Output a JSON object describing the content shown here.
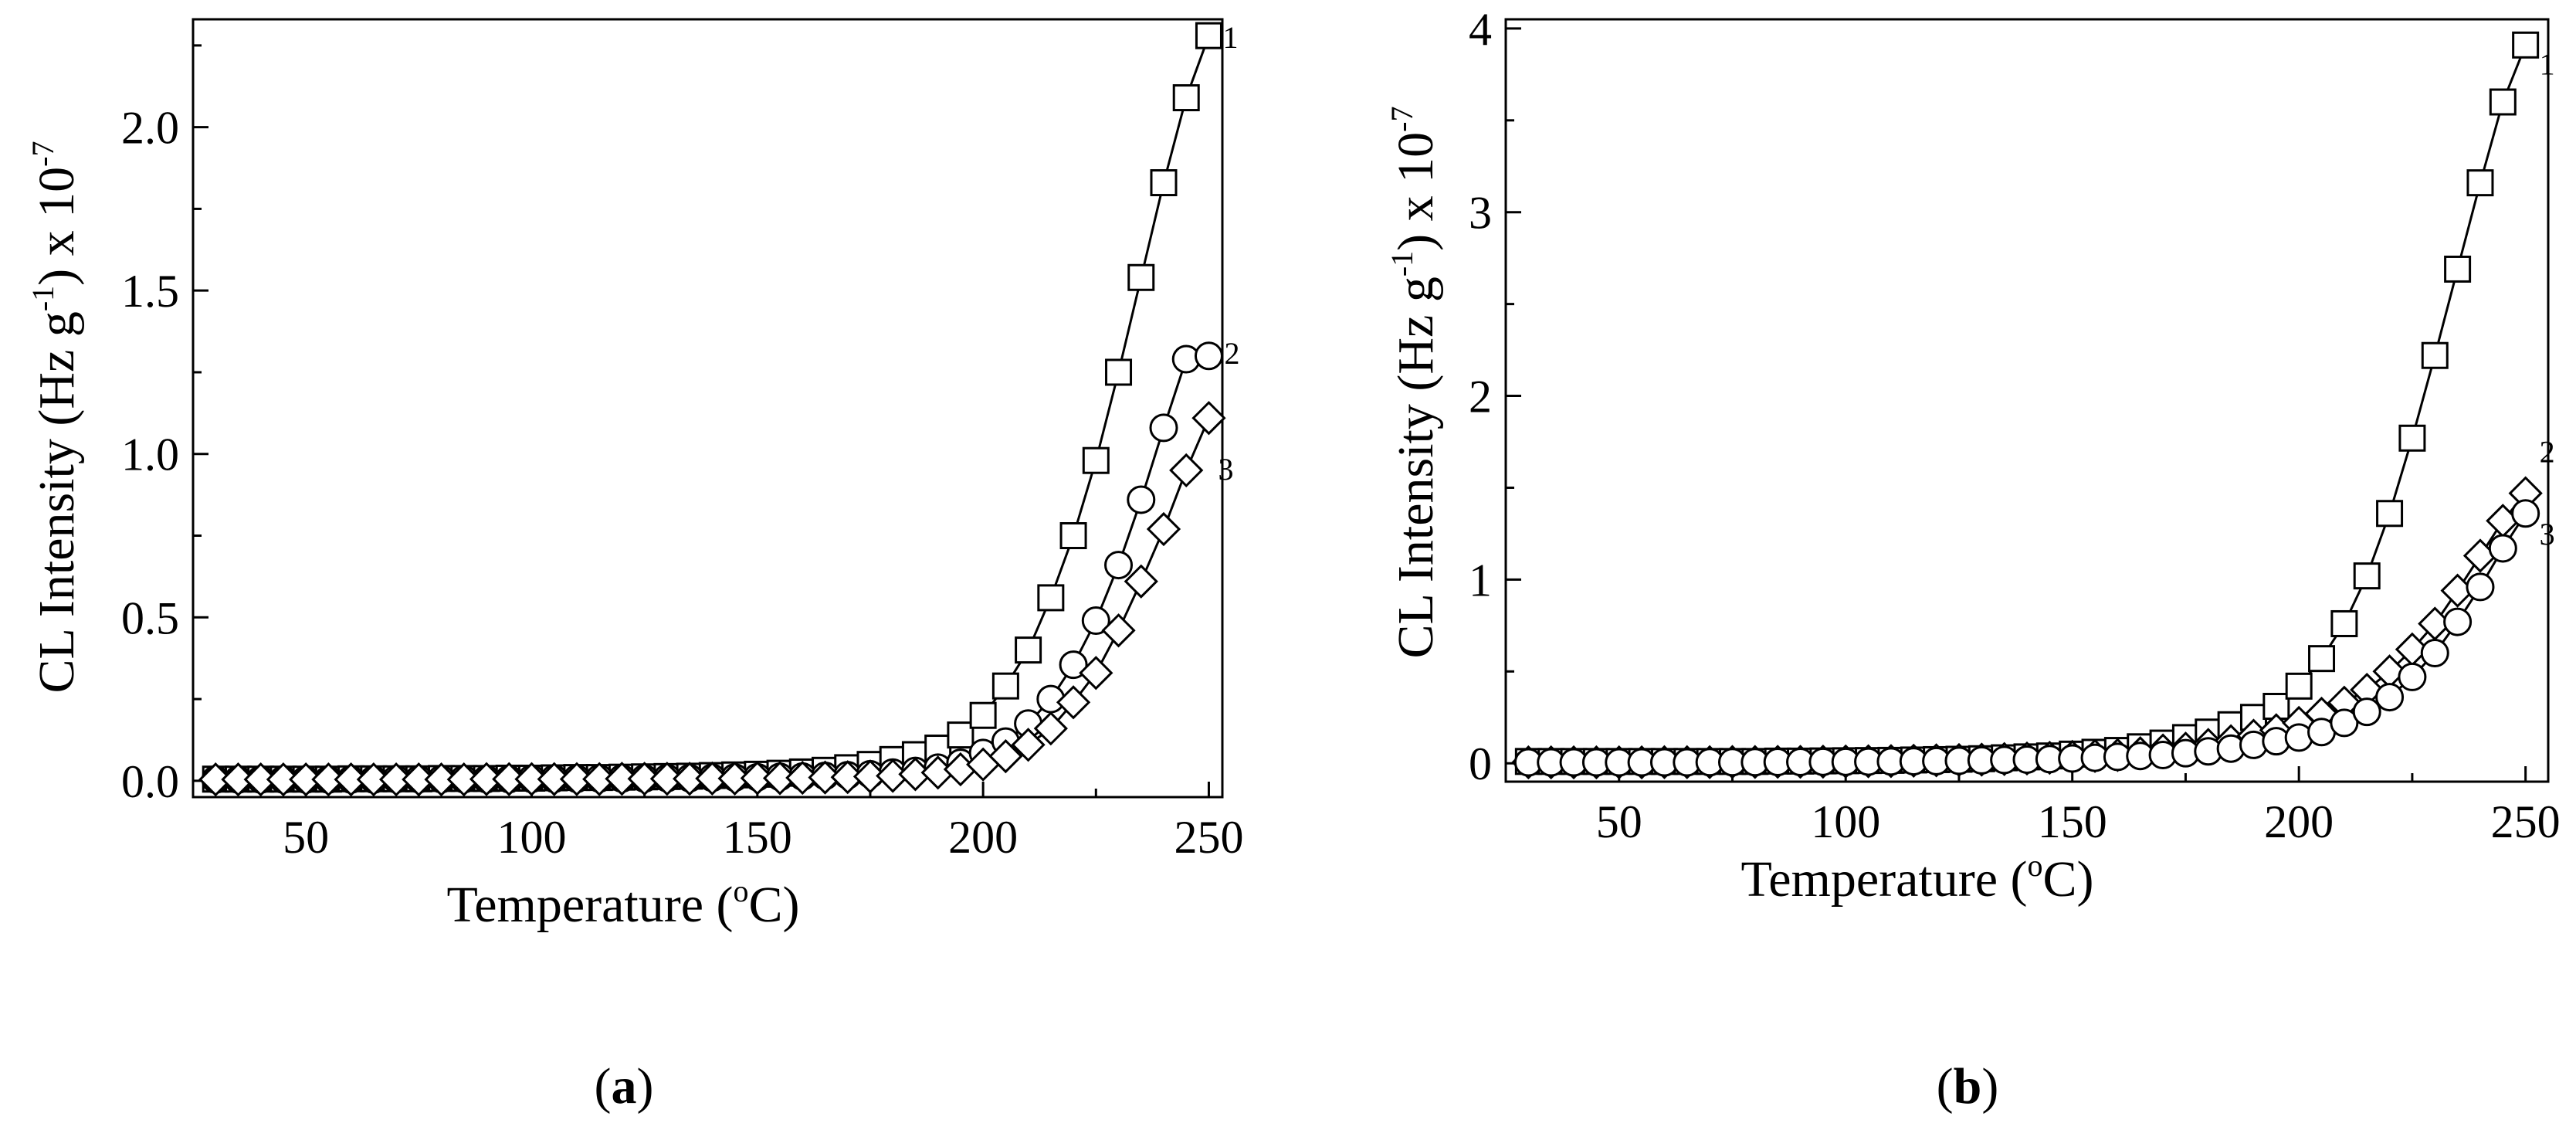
{
  "chart_data": [
    {
      "type": "scatter",
      "panel": "a",
      "caption_open": "(",
      "caption_letter": "a",
      "caption_close": ")",
      "xlabel_main": "Temperature (",
      "xlabel_sup": "o",
      "xlabel_end": "C)",
      "ylabel_main": "CL Intensity (Hz g",
      "ylabel_sup1": "-1",
      "ylabel_mid": ") x 10",
      "ylabel_sup2": "-7",
      "xlim": [
        25,
        253
      ],
      "ylim": [
        -0.05,
        2.33
      ],
      "xticks": [
        50,
        100,
        150,
        200,
        250
      ],
      "yticks": [
        0.0,
        0.5,
        1.0,
        1.5,
        2.0
      ],
      "ytick_labels": [
        "0.0",
        "0.5",
        "1.0",
        "1.5",
        "2.0"
      ],
      "x": [
        30,
        35,
        40,
        45,
        50,
        55,
        60,
        65,
        70,
        75,
        80,
        85,
        90,
        95,
        100,
        105,
        110,
        115,
        120,
        125,
        130,
        135,
        140,
        145,
        150,
        155,
        160,
        165,
        170,
        175,
        180,
        185,
        190,
        195,
        200,
        205,
        210,
        215,
        220,
        225,
        230,
        235,
        240,
        245,
        250
      ],
      "series": [
        {
          "name": "1",
          "marker": "square",
          "label": "1",
          "values": [
            0.005,
            0.005,
            0.005,
            0.005,
            0.005,
            0.005,
            0.006,
            0.006,
            0.006,
            0.006,
            0.007,
            0.007,
            0.007,
            0.008,
            0.008,
            0.009,
            0.01,
            0.01,
            0.011,
            0.012,
            0.013,
            0.014,
            0.016,
            0.018,
            0.02,
            0.023,
            0.027,
            0.032,
            0.04,
            0.05,
            0.065,
            0.08,
            0.1,
            0.14,
            0.2,
            0.29,
            0.4,
            0.56,
            0.75,
            0.98,
            1.25,
            1.54,
            1.83,
            2.09,
            2.28
          ]
        },
        {
          "name": "2",
          "marker": "circle",
          "label": "2",
          "values": [
            0.004,
            0.004,
            0.004,
            0.004,
            0.004,
            0.004,
            0.004,
            0.004,
            0.005,
            0.005,
            0.005,
            0.005,
            0.005,
            0.005,
            0.006,
            0.006,
            0.006,
            0.007,
            0.007,
            0.007,
            0.008,
            0.008,
            0.009,
            0.01,
            0.011,
            0.012,
            0.013,
            0.015,
            0.017,
            0.02,
            0.025,
            0.03,
            0.04,
            0.055,
            0.085,
            0.12,
            0.175,
            0.25,
            0.355,
            0.49,
            0.66,
            0.86,
            1.08,
            1.29,
            1.3
          ]
        },
        {
          "name": "3",
          "marker": "diamond",
          "label": "3",
          "values": [
            0.004,
            0.004,
            0.004,
            0.004,
            0.004,
            0.004,
            0.004,
            0.004,
            0.004,
            0.004,
            0.004,
            0.004,
            0.005,
            0.005,
            0.005,
            0.005,
            0.005,
            0.005,
            0.006,
            0.006,
            0.006,
            0.006,
            0.007,
            0.007,
            0.008,
            0.008,
            0.009,
            0.01,
            0.011,
            0.013,
            0.015,
            0.02,
            0.025,
            0.035,
            0.05,
            0.075,
            0.11,
            0.16,
            0.24,
            0.33,
            0.46,
            0.61,
            0.77,
            0.95,
            1.11
          ]
        }
      ]
    },
    {
      "type": "scatter",
      "panel": "b",
      "caption_open": "(",
      "caption_letter": "b",
      "caption_close": ")",
      "xlabel_main": "Temperature (",
      "xlabel_sup": "o",
      "xlabel_end": "C)",
      "ylabel_main": "CL Intensity (Hz g",
      "ylabel_sup1": "-1",
      "ylabel_mid": ") x 10",
      "ylabel_sup2": "-7",
      "xlim": [
        25,
        255
      ],
      "ylim": [
        -0.1,
        4.05
      ],
      "xticks": [
        50,
        100,
        150,
        200,
        250
      ],
      "yticks": [
        0,
        1,
        2,
        3,
        4
      ],
      "ytick_labels": [
        "0",
        "1",
        "2",
        "3",
        "4"
      ],
      "x": [
        30,
        35,
        40,
        45,
        50,
        55,
        60,
        65,
        70,
        75,
        80,
        85,
        90,
        95,
        100,
        105,
        110,
        115,
        120,
        125,
        130,
        135,
        140,
        145,
        150,
        155,
        160,
        165,
        170,
        175,
        180,
        185,
        190,
        195,
        200,
        205,
        210,
        215,
        220,
        225,
        230,
        235,
        240,
        245,
        250
      ],
      "series": [
        {
          "name": "1",
          "marker": "square",
          "label": "1",
          "values": [
            0.01,
            0.01,
            0.01,
            0.01,
            0.01,
            0.01,
            0.01,
            0.01,
            0.01,
            0.01,
            0.01,
            0.012,
            0.012,
            0.013,
            0.014,
            0.015,
            0.016,
            0.018,
            0.02,
            0.022,
            0.025,
            0.03,
            0.035,
            0.04,
            0.05,
            0.06,
            0.07,
            0.09,
            0.11,
            0.14,
            0.17,
            0.21,
            0.25,
            0.31,
            0.42,
            0.57,
            0.76,
            1.02,
            1.36,
            1.77,
            2.22,
            2.69,
            3.16,
            3.6,
            3.91
          ]
        },
        {
          "name": "2",
          "marker": "diamond",
          "label": "2",
          "values": [
            0.005,
            0.005,
            0.005,
            0.005,
            0.005,
            0.005,
            0.006,
            0.006,
            0.006,
            0.007,
            0.007,
            0.008,
            0.008,
            0.009,
            0.01,
            0.011,
            0.012,
            0.014,
            0.016,
            0.018,
            0.02,
            0.023,
            0.026,
            0.03,
            0.035,
            0.04,
            0.045,
            0.055,
            0.07,
            0.08,
            0.1,
            0.12,
            0.15,
            0.18,
            0.22,
            0.27,
            0.33,
            0.4,
            0.5,
            0.62,
            0.76,
            0.94,
            1.13,
            1.32,
            1.47
          ]
        },
        {
          "name": "3",
          "marker": "circle",
          "label": "3",
          "values": [
            0.005,
            0.005,
            0.005,
            0.005,
            0.005,
            0.005,
            0.005,
            0.005,
            0.006,
            0.006,
            0.006,
            0.007,
            0.007,
            0.008,
            0.008,
            0.009,
            0.01,
            0.011,
            0.012,
            0.014,
            0.016,
            0.018,
            0.02,
            0.023,
            0.026,
            0.03,
            0.035,
            0.04,
            0.045,
            0.055,
            0.065,
            0.08,
            0.1,
            0.12,
            0.14,
            0.17,
            0.22,
            0.28,
            0.36,
            0.47,
            0.6,
            0.77,
            0.96,
            1.17,
            1.36
          ]
        }
      ]
    }
  ]
}
